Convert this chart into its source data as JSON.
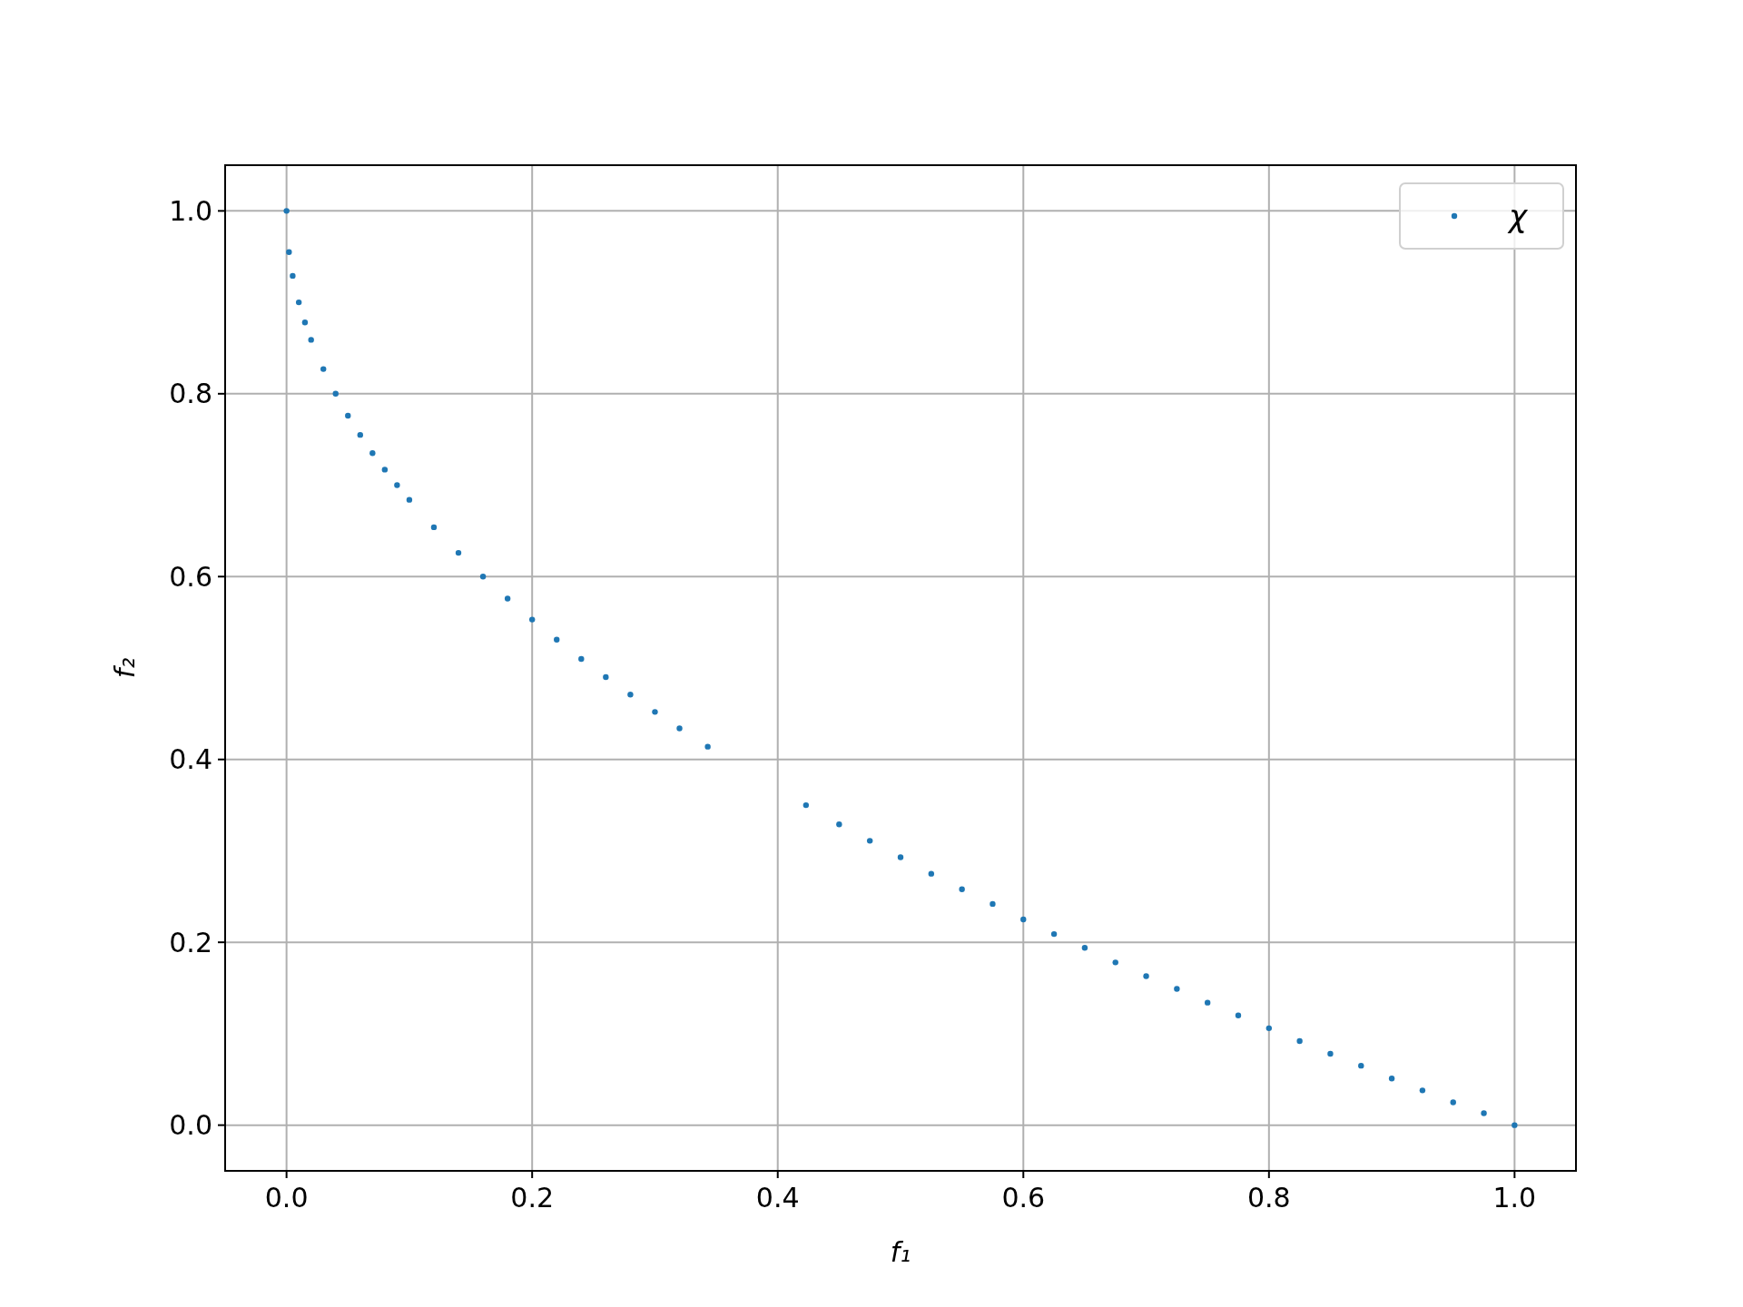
{
  "chart_data": {
    "type": "scatter",
    "xlabel": "f₁",
    "ylabel": "f₂",
    "x": [
      0,
      0.002,
      0.005,
      0.01,
      0.015,
      0.02,
      0.03,
      0.04,
      0.05,
      0.06,
      0.07,
      0.08,
      0.09,
      0.1,
      0.12,
      0.14,
      0.16,
      0.18,
      0.2,
      0.22,
      0.24,
      0.26,
      0.28,
      0.3,
      0.32,
      0.343,
      0.423,
      0.45,
      0.475,
      0.5,
      0.525,
      0.55,
      0.575,
      0.6,
      0.625,
      0.65,
      0.675,
      0.7,
      0.725,
      0.75,
      0.775,
      0.8,
      0.825,
      0.85,
      0.875,
      0.9,
      0.925,
      0.95,
      0.975,
      1.0
    ],
    "series": [
      {
        "name": "χ",
        "color": "#1f77b4",
        "values": [
          1,
          0.955,
          0.929,
          0.9,
          0.878,
          0.859,
          0.827,
          0.8,
          0.776,
          0.755,
          0.735,
          0.717,
          0.7,
          0.684,
          0.654,
          0.626,
          0.6,
          0.576,
          0.553,
          0.531,
          0.51,
          0.49,
          0.471,
          0.452,
          0.434,
          0.414,
          0.35,
          0.329,
          0.311,
          0.293,
          0.275,
          0.258,
          0.242,
          0.225,
          0.209,
          0.194,
          0.178,
          0.163,
          0.149,
          0.134,
          0.12,
          0.106,
          0.092,
          0.078,
          0.065,
          0.051,
          0.038,
          0.025,
          0.013,
          0
        ]
      }
    ],
    "xlim": [
      -0.05,
      1.05
    ],
    "ylim": [
      -0.05,
      1.05
    ],
    "xticks": [
      {
        "value": 0,
        "label": "0.0"
      },
      0.2,
      0.4,
      0.6,
      0.8,
      {
        "value": 1,
        "label": "1.0"
      }
    ],
    "yticks": [
      {
        "value": 0,
        "label": "0.0"
      },
      0.2,
      0.4,
      0.6,
      0.8,
      {
        "value": 1,
        "label": "1.0"
      }
    ],
    "grid": true,
    "legend": "top right",
    "marker": "circle"
  }
}
